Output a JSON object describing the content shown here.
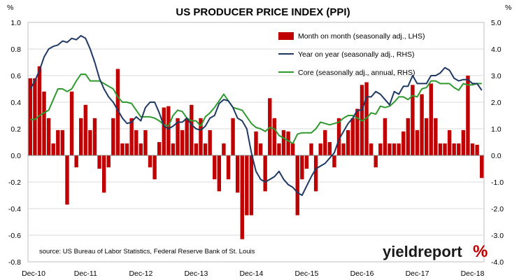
{
  "chart_data": {
    "type": "bar",
    "title": "US PRODUCER PRICE INDEX (PPI)",
    "left_unit": "%",
    "right_unit": "%",
    "source": "source: US Bureau of Labor Statistics, Federal Reserve Bank of St. Louis",
    "logo_text": "yieldreport",
    "logo_symbol": "%",
    "x_tick_labels": [
      "Dec-10",
      "Dec-11",
      "Dec-12",
      "Dec-13",
      "Dec-14",
      "Dec-15",
      "Dec-16",
      "Dec-17",
      "Dec-18"
    ],
    "x_tick_index": [
      0,
      12,
      24,
      36,
      48,
      60,
      72,
      84,
      96
    ],
    "y_left": {
      "min": -0.8,
      "max": 1.0,
      "step": 0.2,
      "labels": [
        "-0.8",
        "-0.6",
        "-0.4",
        "-0.2",
        "0.0",
        "0.2",
        "0.4",
        "0.6",
        "0.8",
        "1.0"
      ]
    },
    "y_right": {
      "min": -4.0,
      "max": 5.0,
      "step": 1.0,
      "labels": [
        "-4.0",
        "-3.0",
        "-2.0",
        "-1.0",
        "0.0",
        "1.0",
        "2.0",
        "3.0",
        "4.0",
        "5.0"
      ]
    },
    "legend_position": "top-right",
    "grid": "horizontal",
    "colors": {
      "bar": "#c00000",
      "yoy": "#1f3864",
      "core": "#2e9a2e",
      "logo_accent": "#c00000"
    },
    "series": [
      {
        "name": "Month on month (seasonally adj., LHS)",
        "kind": "bar",
        "axis": "left",
        "values": [
          0.58,
          0.58,
          0.67,
          0.48,
          0.28,
          0.09,
          0.19,
          0.19,
          -0.37,
          0.48,
          -0.09,
          0.28,
          0.38,
          0.19,
          0.28,
          -0.1,
          -0.28,
          -0.09,
          0.28,
          0.65,
          0.09,
          0.09,
          0.28,
          0.19,
          0.09,
          0.19,
          -0.09,
          -0.18,
          0.1,
          0.36,
          0.37,
          0.09,
          0.28,
          0.19,
          0.28,
          0.38,
          0.09,
          0.28,
          0.09,
          0.19,
          -0.18,
          -0.27,
          0.09,
          -0.18,
          0.28,
          -0.28,
          -0.63,
          -0.45,
          -0.45,
          0.18,
          0.09,
          -0.27,
          0.43,
          0.28,
          0.09,
          0.19,
          0.18,
          0.09,
          -0.45,
          -0.18,
          -0.1,
          0.09,
          -0.27,
          0.09,
          0.19,
          0.1,
          -0.09,
          0.28,
          0.09,
          0.19,
          0.28,
          0.35,
          0.53,
          0.55,
          0.09,
          -0.09,
          0.09,
          0.28,
          0.09,
          0.09,
          0.09,
          0.18,
          0.28,
          0.53,
          0.19,
          0.46,
          0.28,
          0.54,
          0.28,
          0.09,
          0.09,
          0.19,
          0.09,
          0.09,
          0.19,
          0.6,
          0.09,
          0.08,
          -0.17
        ]
      },
      {
        "name": "Year on year (seasonally adj., RHS)",
        "kind": "line",
        "axis": "right",
        "values": [
          2.5,
          2.8,
          3.2,
          3.7,
          4.0,
          4.1,
          4.15,
          4.3,
          4.25,
          4.4,
          4.35,
          4.5,
          4.4,
          4.0,
          3.5,
          2.9,
          2.5,
          2.2,
          2.0,
          1.7,
          1.4,
          1.2,
          1.25,
          1.45,
          1.3,
          1.8,
          2.0,
          2.0,
          1.6,
          1.1,
          1.0,
          1.1,
          1.25,
          1.25,
          1.4,
          1.15,
          1.0,
          0.95,
          1.1,
          1.4,
          1.5,
          1.95,
          2.1,
          2.05,
          1.8,
          1.4,
          1.3,
          1.0,
          0.1,
          -0.6,
          -0.9,
          -1.0,
          -0.9,
          -0.8,
          -0.6,
          -0.9,
          -1.1,
          -1.2,
          -1.4,
          -1.5,
          -1.15,
          -0.8,
          -0.5,
          -0.4,
          -0.3,
          -0.1,
          0.1,
          0.6,
          0.9,
          1.2,
          1.4,
          1.7,
          1.7,
          2.2,
          2.2,
          2.4,
          2.3,
          2.1,
          1.9,
          2.4,
          2.3,
          2.6,
          2.6,
          3.0,
          2.7,
          2.7,
          2.7,
          3.0,
          3.0,
          3.1,
          3.3,
          3.2,
          2.9,
          2.8,
          2.85,
          2.85,
          2.7,
          2.7,
          2.45
        ]
      },
      {
        "name": "Core (seasonally adj., annual, RHS)",
        "kind": "line",
        "axis": "right",
        "values": [
          1.35,
          1.35,
          1.5,
          1.6,
          1.7,
          2.1,
          2.5,
          2.5,
          2.4,
          2.5,
          2.8,
          3.05,
          3.05,
          2.8,
          2.8,
          2.8,
          2.7,
          2.6,
          2.5,
          2.2,
          2.0,
          2.0,
          1.95,
          1.7,
          1.45,
          1.45,
          1.45,
          1.4,
          1.3,
          1.15,
          1.1,
          1.5,
          1.7,
          1.65,
          1.4,
          1.3,
          1.3,
          1.1,
          1.45,
          1.6,
          1.8,
          2.05,
          2.3,
          2.05,
          1.8,
          1.75,
          1.7,
          1.45,
          1.2,
          1.05,
          1.0,
          0.9,
          1.05,
          1.0,
          0.75,
          0.65,
          0.55,
          0.45,
          0.8,
          0.85,
          0.85,
          0.85,
          1.0,
          1.25,
          1.2,
          1.15,
          1.2,
          1.25,
          1.4,
          1.5,
          1.5,
          1.4,
          1.3,
          1.4,
          1.6,
          1.55,
          1.85,
          1.8,
          1.85,
          2.0,
          2.2,
          2.2,
          2.1,
          2.25,
          2.2,
          2.5,
          2.55,
          2.8,
          2.8,
          2.7,
          2.7,
          2.7,
          2.55,
          2.45,
          2.7,
          2.65,
          2.65,
          2.7,
          2.7
        ]
      }
    ]
  }
}
